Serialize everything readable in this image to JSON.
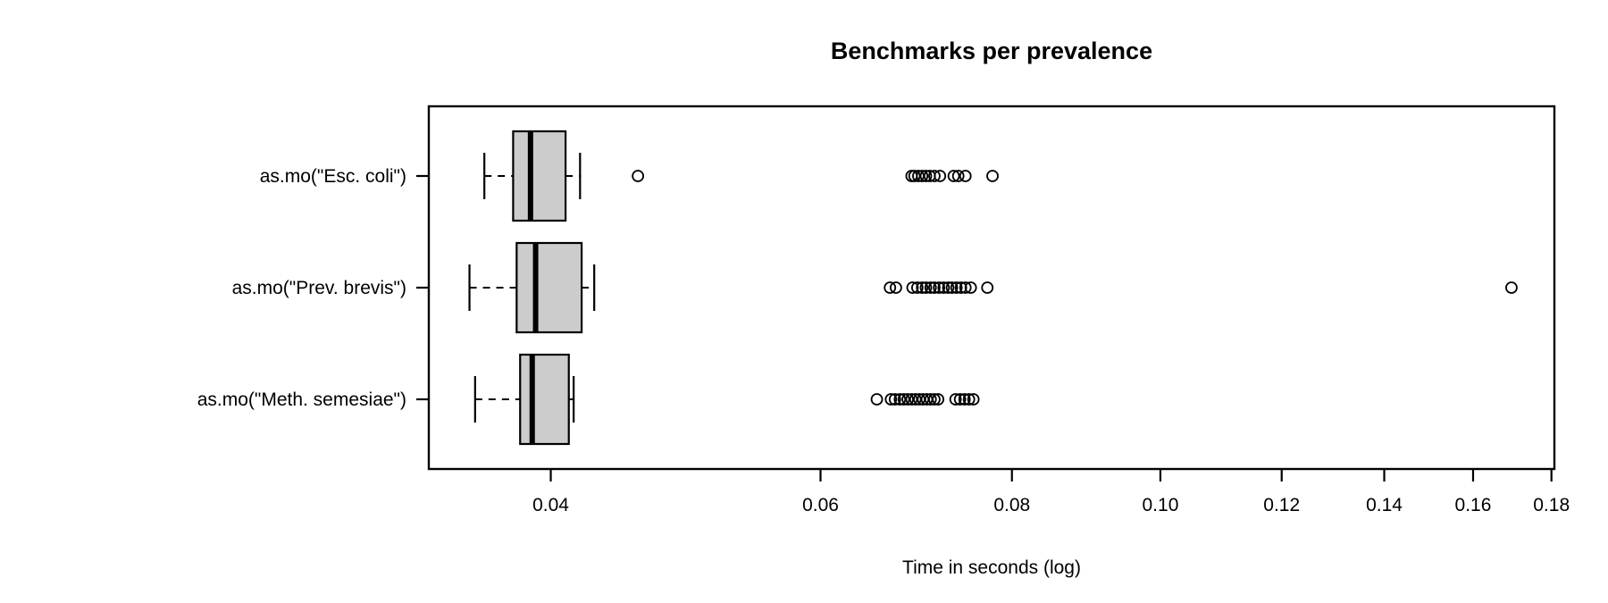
{
  "page": {
    "background": "#ffffff",
    "text_color": "#000000"
  },
  "chart_data": {
    "type": "boxplot",
    "orientation": "horizontal",
    "title": "Benchmarks per prevalence",
    "xlabel": "Time in seconds (log)",
    "ylabel": "",
    "x_scale": "log10",
    "xlim": [
      0.0333,
      0.1808
    ],
    "grid": false,
    "legend": "none",
    "box_fill": "#cccccc",
    "box_stroke": "#000000",
    "outlier_shape": "open-circle",
    "x_ticks": [
      0.04,
      0.06,
      0.08,
      0.1,
      0.12,
      0.14,
      0.16,
      0.18
    ],
    "x_tick_labels": [
      "0.04",
      "0.06",
      "0.08",
      "0.10",
      "0.12",
      "0.14",
      "0.16",
      "0.18"
    ],
    "categories": [
      {
        "label": "as.mo(\"Esc. coli\")",
        "whisker_low": 0.0362,
        "q1": 0.0378,
        "median": 0.0388,
        "q3": 0.0409,
        "whisker_high": 0.0418,
        "outliers": [
          0.0456,
          0.0688,
          0.0691,
          0.0695,
          0.0699,
          0.0703,
          0.0707,
          0.0712,
          0.0718,
          0.0733,
          0.0738,
          0.0746,
          0.0777
        ]
      },
      {
        "label": "as.mo(\"Prev. brevis\")",
        "whisker_low": 0.0354,
        "q1": 0.038,
        "median": 0.0391,
        "q3": 0.0419,
        "whisker_high": 0.0427,
        "outliers": [
          0.0666,
          0.0672,
          0.0689,
          0.0694,
          0.0699,
          0.0703,
          0.0708,
          0.0712,
          0.0717,
          0.0722,
          0.0727,
          0.0731,
          0.0736,
          0.0741,
          0.0746,
          0.0752,
          0.0771,
          0.1695
        ]
      },
      {
        "label": "as.mo(\"Meth. semesiae\")",
        "whisker_low": 0.0357,
        "q1": 0.0382,
        "median": 0.0389,
        "q3": 0.0411,
        "whisker_high": 0.0414,
        "outliers": [
          0.0653,
          0.0667,
          0.0671,
          0.0676,
          0.068,
          0.0684,
          0.0688,
          0.0692,
          0.0696,
          0.07,
          0.0704,
          0.0708,
          0.0712,
          0.0716,
          0.0735,
          0.074,
          0.0745,
          0.075,
          0.0755
        ]
      }
    ]
  }
}
